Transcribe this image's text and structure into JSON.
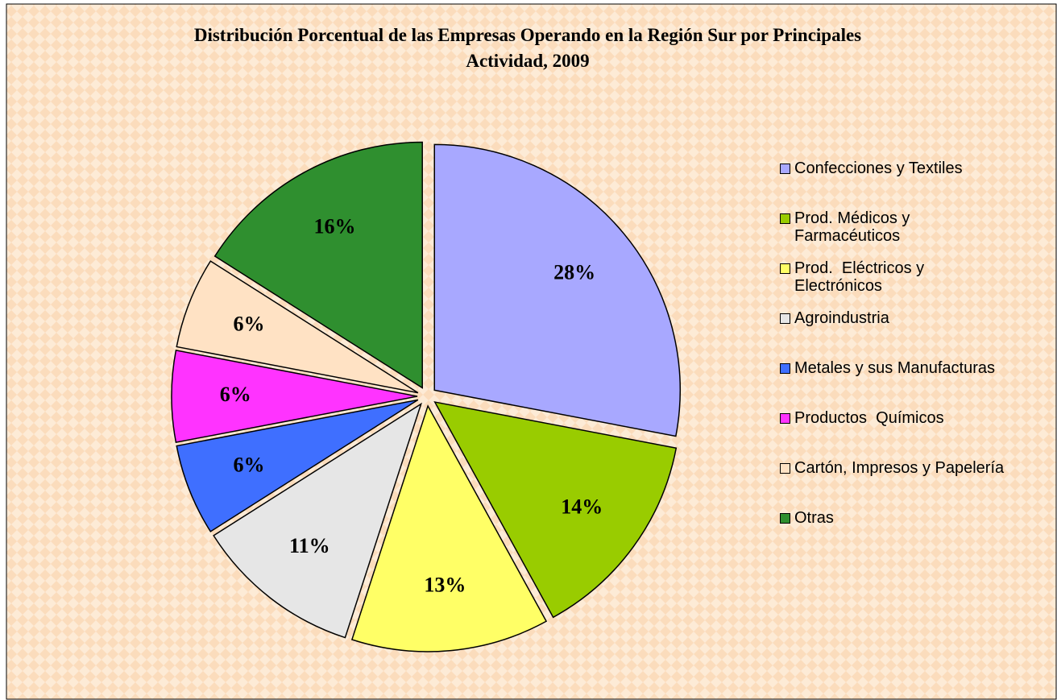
{
  "chart_data": {
    "type": "pie",
    "title": "Distribución Porcentual de las Empresas Operando en la Región Sur por Principales Actividad, 2009",
    "categories": [
      "Confecciones y Textiles",
      "Prod. Médicos y Farmacéuticos",
      "Prod.  Eléctricos y Electrónicos",
      "Agroindustria",
      "Metales y sus Manufacturas",
      "Productos  Químicos",
      "Cartón, Impresos y Papelería",
      "Otras"
    ],
    "values": [
      28,
      14,
      13,
      11,
      6,
      6,
      6,
      16
    ],
    "value_labels": [
      "28%",
      "14%",
      "13%",
      "11%",
      "6%",
      "6%",
      "6%",
      "16%"
    ],
    "colors": [
      "#a8a8ff",
      "#99cc00",
      "#ffff66",
      "#e6e6e6",
      "#3f6fff",
      "#ff33ff",
      "#ffe2c4",
      "#2f8f2f"
    ],
    "legend": "right"
  }
}
